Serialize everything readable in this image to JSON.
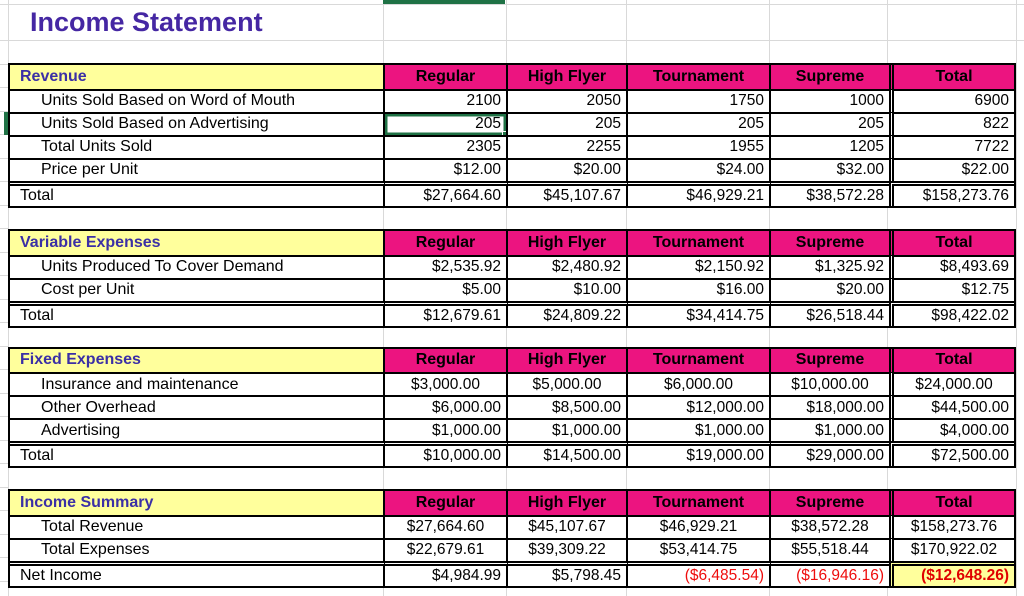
{
  "page_title": "Income Statement",
  "selection": {
    "section_index": 0,
    "row_index": 1,
    "col_index": 0,
    "selected_cell_value": "205",
    "selected_row_label": "Units Sold Based on Advertising",
    "selected_column": "Regular"
  },
  "colors": {
    "header_pink": "#ec1480",
    "section_yellow": "#ffff9c",
    "title_purple": "#4527a3",
    "section_title_purple": "#3b2fa6",
    "negative_red": "#ee0c0c",
    "selection_green": "#1f7245",
    "gridline_gray": "#d9d9d9",
    "border_black": "#000000"
  },
  "sections": [
    {
      "title": "Revenue",
      "columns": [
        "Regular",
        "High Flyer",
        "Tournament",
        "Supreme",
        "Total"
      ],
      "rows": [
        {
          "label": "Units Sold Based on Word of Mouth",
          "indent": true,
          "align": "right",
          "values": [
            "2100",
            "2050",
            "1750",
            "1000",
            "6900"
          ]
        },
        {
          "label": "Units Sold Based on Advertising",
          "indent": true,
          "align": "right",
          "values": [
            "205",
            "205",
            "205",
            "205",
            "822"
          ]
        },
        {
          "label": "Total Units Sold",
          "indent": true,
          "align": "right",
          "values": [
            "2305",
            "2255",
            "1955",
            "1205",
            "7722"
          ]
        },
        {
          "label": "Price per Unit",
          "indent": true,
          "align": "right",
          "values": [
            "$12.00",
            "$20.00",
            "$24.00",
            "$32.00",
            "$22.00"
          ]
        },
        {
          "label": "Total",
          "is_total": true,
          "align": "right",
          "values": [
            "$27,664.60",
            "$45,107.67",
            "$46,929.21",
            "$38,572.28",
            "$158,273.76"
          ]
        }
      ]
    },
    {
      "title": "Variable Expenses",
      "columns": [
        "Regular",
        "High Flyer",
        "Tournament",
        "Supreme",
        "Total"
      ],
      "rows": [
        {
          "label": "Units Produced To Cover Demand",
          "indent": true,
          "align": "right",
          "values": [
            "$2,535.92",
            "$2,480.92",
            "$2,150.92",
            "$1,325.92",
            "$8,493.69"
          ]
        },
        {
          "label": "Cost per Unit",
          "indent": true,
          "align": "right",
          "values": [
            "$5.00",
            "$10.00",
            "$16.00",
            "$20.00",
            "$12.75"
          ]
        },
        {
          "label": "Total",
          "is_total": true,
          "align": "right",
          "values": [
            "$12,679.61",
            "$24,809.22",
            "$34,414.75",
            "$26,518.44",
            "$98,422.02"
          ]
        }
      ]
    },
    {
      "title": "Fixed Expenses",
      "columns": [
        "Regular",
        "High Flyer",
        "Tournament",
        "Supreme",
        "Total"
      ],
      "rows": [
        {
          "label": "Insurance and maintenance",
          "indent": true,
          "align": "center",
          "values": [
            "$3,000.00",
            "$5,000.00",
            "$6,000.00",
            "$10,000.00",
            "$24,000.00"
          ]
        },
        {
          "label": "Other Overhead",
          "indent": true,
          "align": "right",
          "values": [
            "$6,000.00",
            "$8,500.00",
            "$12,000.00",
            "$18,000.00",
            "$44,500.00"
          ]
        },
        {
          "label": "Advertising",
          "indent": true,
          "align": "right",
          "values": [
            "$1,000.00",
            "$1,000.00",
            "$1,000.00",
            "$1,000.00",
            "$4,000.00"
          ]
        },
        {
          "label": "Total",
          "is_total": true,
          "align": "right",
          "values": [
            "$10,000.00",
            "$14,500.00",
            "$19,000.00",
            "$29,000.00",
            "$72,500.00"
          ]
        }
      ]
    },
    {
      "title": "Income Summary",
      "columns": [
        "Regular",
        "High Flyer",
        "Tournament",
        "Supreme",
        "Total"
      ],
      "rows": [
        {
          "label": "Total Revenue",
          "indent": true,
          "align": "center",
          "values": [
            "$27,664.60",
            "$45,107.67",
            "$46,929.21",
            "$38,572.28",
            "$158,273.76"
          ]
        },
        {
          "label": "Total Expenses",
          "indent": true,
          "align": "center",
          "values": [
            "$22,679.61",
            "$39,309.22",
            "$53,414.75",
            "$55,518.44",
            "$170,922.02"
          ]
        },
        {
          "label": "Net Income",
          "is_total": true,
          "align": "right",
          "values": [
            "$4,984.99",
            "$5,798.45",
            "($6,485.54)",
            "($16,946.16)",
            "($12,648.26)"
          ],
          "styles": [
            "",
            "",
            "neg",
            "neg",
            "neg-strong"
          ]
        }
      ]
    }
  ]
}
